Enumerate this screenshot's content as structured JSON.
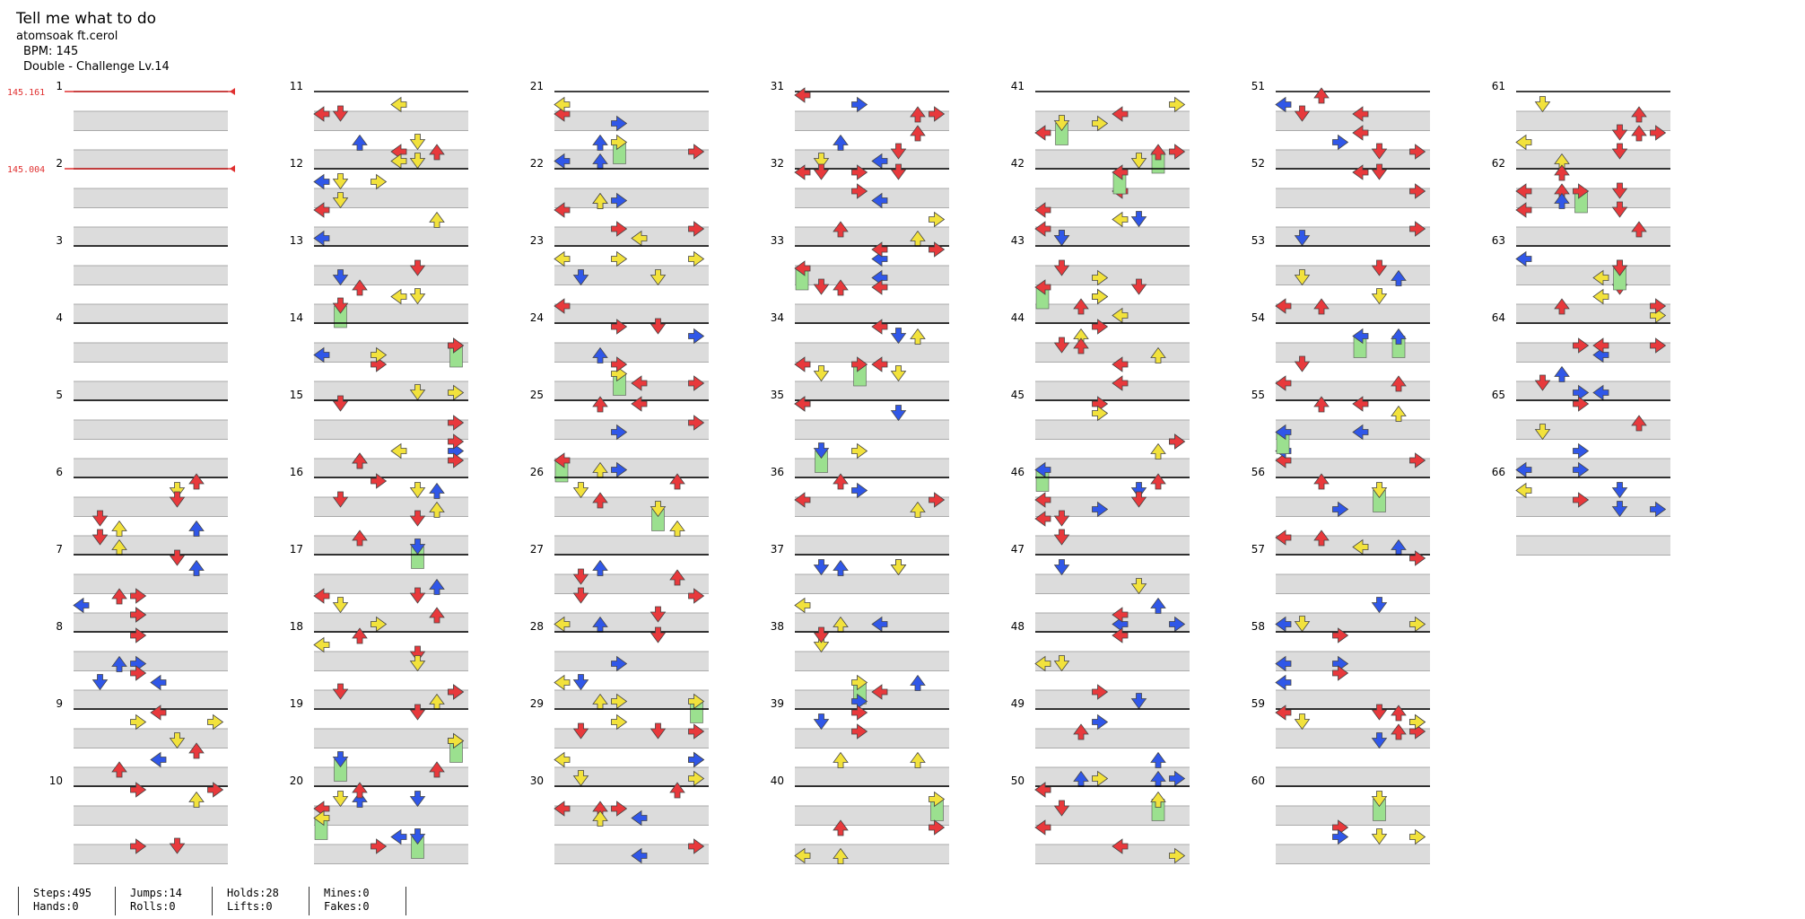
{
  "header": {
    "title": "Tell me what to do",
    "artist": "atomsoak ft.cerol",
    "bpm": "BPM: 145",
    "difficulty": "Double - Challenge Lv.14"
  },
  "bpm_changes": [
    {
      "measure": 1,
      "value": "145.161"
    },
    {
      "measure": 2,
      "value": "145.004"
    }
  ],
  "measures": [
    1,
    2,
    3,
    4,
    5,
    6,
    7,
    8,
    9,
    10,
    11,
    12,
    13,
    14,
    15,
    16,
    17,
    18,
    19,
    20,
    21,
    22,
    23,
    24,
    25,
    26,
    27,
    28,
    29,
    30,
    31,
    32,
    33,
    34,
    35,
    36,
    37,
    38,
    39,
    40,
    41,
    42,
    43,
    44,
    45,
    46,
    47,
    48,
    49,
    50,
    51,
    52,
    53,
    54,
    55,
    56,
    57,
    58,
    59,
    60,
    61,
    62,
    63,
    64,
    65,
    66
  ],
  "columns": 7,
  "measures_per_column": 10,
  "lanes": [
    "left",
    "down",
    "up",
    "right",
    "left",
    "down",
    "up",
    "right"
  ],
  "arrow_colors": {
    "quarter": "#e8393c",
    "eighth": "#3057e8",
    "sixteenth": "#f2e23c",
    "hold_body": "#9be08f"
  },
  "stats": {
    "steps": "Steps:495",
    "hands": "Hands:0",
    "jumps": "Jumps:14",
    "rolls": "Rolls:0",
    "holds": "Holds:28",
    "lifts": "Lifts:0",
    "mines": "Mines:0",
    "fakes": "Fakes:0"
  }
}
